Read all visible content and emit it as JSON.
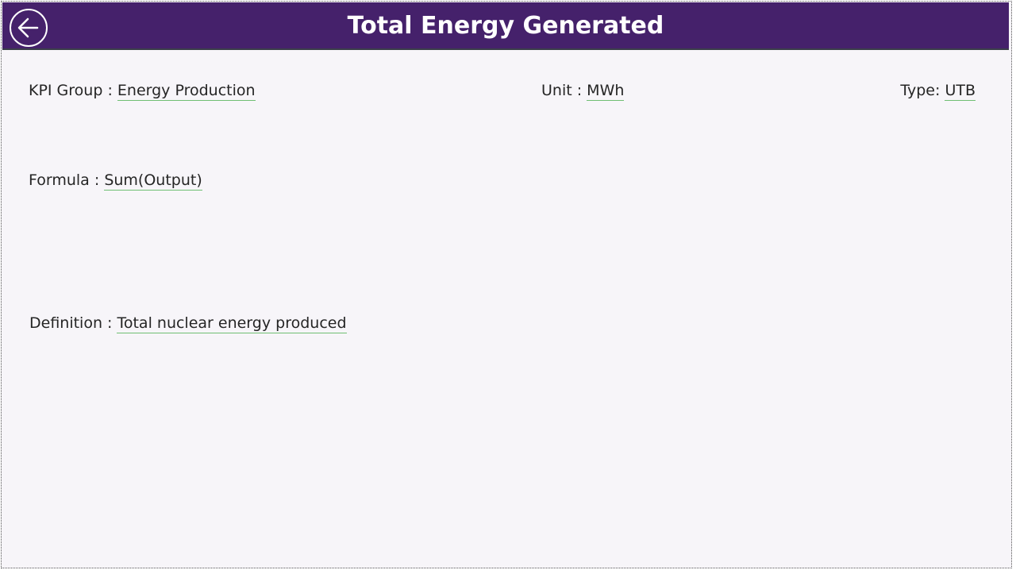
{
  "header": {
    "title": "Total Energy Generated",
    "back_icon": "arrow-left-circle-icon"
  },
  "fields": {
    "kpi_group": {
      "label": "KPI Group : ",
      "value": "Energy Production"
    },
    "unit": {
      "label": "Unit : ",
      "value": "MWh"
    },
    "type": {
      "label": "Type: ",
      "value": "UTB"
    },
    "formula": {
      "label": "Formula : ",
      "value": "Sum(Output)"
    },
    "definition": {
      "label": "Definition : ",
      "value": "Total nuclear energy produced"
    }
  },
  "colors": {
    "header": "#45216b",
    "background": "#f7f5f9",
    "underline": "#6fbf73"
  }
}
